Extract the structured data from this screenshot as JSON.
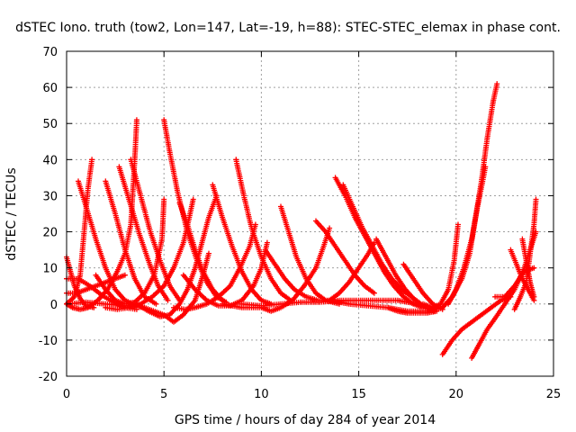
{
  "chart_data": {
    "type": "scatter",
    "title": "dSTEC Iono. truth (tow2, Lon=147, Lat=-19, h=88): STEC-STEC_elemax in phase cont.",
    "xlabel": "GPS time / hours of day 284 of year 2014",
    "ylabel": "dSTEC  / TECUs",
    "xlim": [
      0,
      25
    ],
    "ylim": [
      -20,
      70
    ],
    "xticks": [
      0,
      5,
      10,
      15,
      20,
      25
    ],
    "yticks": [
      -20,
      -10,
      0,
      10,
      20,
      30,
      40,
      50,
      60,
      70
    ],
    "grid": true,
    "marker": "plus",
    "color": "#ff0000",
    "series": [
      {
        "points": [
          [
            0.0,
            13
          ],
          [
            0.2,
            9
          ],
          [
            0.4,
            5
          ],
          [
            0.7,
            1.5
          ],
          [
            1.0,
            -0.5
          ],
          [
            1.4,
            -1
          ]
        ]
      },
      {
        "points": [
          [
            0.0,
            0
          ],
          [
            0.3,
            -1
          ],
          [
            0.7,
            -1.5
          ],
          [
            1.1,
            -1
          ],
          [
            1.6,
            1
          ],
          [
            2.1,
            4
          ],
          [
            2.6,
            9
          ],
          [
            3.0,
            14
          ],
          [
            3.3,
            22
          ],
          [
            3.5,
            40
          ],
          [
            3.6,
            51
          ]
        ]
      },
      {
        "points": [
          [
            0.0,
            7
          ],
          [
            0.6,
            7
          ],
          [
            1.2,
            5
          ],
          [
            1.8,
            2.5
          ],
          [
            2.4,
            0.5
          ],
          [
            3.0,
            -1
          ],
          [
            3.6,
            -1.5
          ]
        ]
      },
      {
        "points": [
          [
            0.0,
            3
          ],
          [
            0.5,
            3
          ],
          [
            1.0,
            4
          ],
          [
            1.5,
            5
          ],
          [
            2.0,
            6
          ],
          [
            2.5,
            7
          ],
          [
            3.0,
            8
          ]
        ]
      },
      {
        "points": [
          [
            0.6,
            34
          ],
          [
            1.0,
            27
          ],
          [
            1.5,
            18
          ],
          [
            2.0,
            10
          ],
          [
            2.5,
            4
          ],
          [
            3.0,
            1
          ],
          [
            3.4,
            0
          ]
        ]
      },
      {
        "points": [
          [
            0.0,
            0
          ],
          [
            0.4,
            2
          ],
          [
            0.7,
            8
          ],
          [
            0.9,
            20
          ],
          [
            1.1,
            32
          ],
          [
            1.3,
            40
          ]
        ]
      },
      {
        "points": [
          [
            2.0,
            34
          ],
          [
            2.5,
            25
          ],
          [
            3.0,
            15
          ],
          [
            3.5,
            7
          ],
          [
            4.0,
            2
          ],
          [
            4.6,
            0
          ]
        ]
      },
      {
        "points": [
          [
            2.7,
            38
          ],
          [
            3.2,
            29
          ],
          [
            3.7,
            20
          ],
          [
            4.2,
            12
          ],
          [
            4.7,
            5
          ],
          [
            5.2,
            1
          ]
        ]
      },
      {
        "points": [
          [
            3.3,
            40
          ],
          [
            3.8,
            30
          ],
          [
            4.3,
            20
          ],
          [
            4.8,
            12
          ],
          [
            5.3,
            5
          ],
          [
            5.8,
            1
          ]
        ]
      },
      {
        "points": [
          [
            1.5,
            8
          ],
          [
            2.0,
            4
          ],
          [
            2.5,
            1
          ],
          [
            3.0,
            0
          ],
          [
            3.5,
            0.5
          ],
          [
            4.0,
            3
          ],
          [
            4.5,
            8
          ],
          [
            4.9,
            18
          ],
          [
            5.0,
            29
          ]
        ]
      },
      {
        "points": [
          [
            5.0,
            51
          ],
          [
            5.3,
            42
          ],
          [
            5.7,
            31
          ],
          [
            6.2,
            20
          ],
          [
            6.7,
            12
          ],
          [
            7.2,
            6
          ],
          [
            7.7,
            2
          ],
          [
            8.2,
            0.5
          ]
        ]
      },
      {
        "points": [
          [
            5.8,
            28
          ],
          [
            6.2,
            22
          ],
          [
            6.6,
            15
          ],
          [
            7.0,
            9
          ],
          [
            7.5,
            4
          ],
          [
            8.0,
            1
          ]
        ]
      },
      {
        "points": [
          [
            2.0,
            -1
          ],
          [
            2.6,
            -1.5
          ],
          [
            3.2,
            -1
          ],
          [
            3.8,
            0
          ],
          [
            4.4,
            2
          ],
          [
            5.0,
            5
          ],
          [
            5.5,
            10
          ],
          [
            6.0,
            17
          ],
          [
            6.3,
            24
          ],
          [
            6.5,
            29
          ]
        ]
      },
      {
        "points": [
          [
            0.0,
            0
          ],
          [
            1.0,
            0.5
          ],
          [
            2.0,
            0
          ],
          [
            3.0,
            -0.5
          ],
          [
            4.0,
            -1
          ],
          [
            5.0,
            -3
          ],
          [
            5.5,
            -5
          ],
          [
            6.0,
            -3
          ],
          [
            6.6,
            1
          ],
          [
            7.0,
            8
          ],
          [
            7.3,
            14
          ]
        ]
      },
      {
        "points": [
          [
            3.6,
            0
          ],
          [
            4.2,
            -2
          ],
          [
            4.8,
            -3.5
          ],
          [
            5.3,
            -3
          ],
          [
            5.8,
            0
          ],
          [
            6.2,
            4
          ],
          [
            6.6,
            10
          ],
          [
            7.0,
            18
          ],
          [
            7.3,
            24
          ],
          [
            7.7,
            30
          ]
        ]
      },
      {
        "points": [
          [
            5.5,
            -1
          ],
          [
            6.1,
            -1.5
          ],
          [
            6.6,
            -1
          ],
          [
            7.2,
            0
          ],
          [
            7.8,
            2
          ],
          [
            8.4,
            5
          ],
          [
            8.9,
            10
          ],
          [
            9.4,
            16
          ],
          [
            9.7,
            22
          ]
        ]
      },
      {
        "points": [
          [
            7.5,
            33
          ],
          [
            8.0,
            24
          ],
          [
            8.5,
            16
          ],
          [
            9.0,
            9
          ],
          [
            9.5,
            4
          ],
          [
            10.0,
            1
          ],
          [
            10.5,
            0
          ]
        ]
      },
      {
        "points": [
          [
            8.7,
            40
          ],
          [
            9.1,
            30
          ],
          [
            9.5,
            21
          ],
          [
            10.0,
            13
          ],
          [
            10.5,
            7
          ],
          [
            11.0,
            3
          ],
          [
            11.5,
            1
          ]
        ]
      },
      {
        "points": [
          [
            6.0,
            8
          ],
          [
            6.6,
            4
          ],
          [
            7.2,
            1
          ],
          [
            7.8,
            -0.5
          ],
          [
            8.4,
            -0.5
          ],
          [
            9.0,
            1
          ],
          [
            9.6,
            5
          ],
          [
            10.0,
            10
          ],
          [
            10.3,
            17
          ]
        ]
      },
      {
        "points": [
          [
            8.0,
            0
          ],
          [
            9.0,
            -1
          ],
          [
            10.0,
            -1
          ],
          [
            10.5,
            -2
          ],
          [
            11.0,
            -1
          ],
          [
            11.6,
            1
          ],
          [
            12.2,
            5
          ],
          [
            12.8,
            10
          ],
          [
            13.2,
            16
          ],
          [
            13.5,
            21
          ]
        ]
      },
      {
        "points": [
          [
            10.2,
            15
          ],
          [
            10.7,
            11
          ],
          [
            11.2,
            7
          ],
          [
            11.7,
            4
          ],
          [
            12.3,
            2
          ],
          [
            12.9,
            1
          ],
          [
            13.5,
            1
          ]
        ]
      },
      {
        "points": [
          [
            11.0,
            27
          ],
          [
            11.4,
            20
          ],
          [
            11.8,
            13
          ],
          [
            12.3,
            7
          ],
          [
            12.8,
            3
          ],
          [
            13.3,
            1
          ],
          [
            14.0,
            0
          ]
        ]
      },
      {
        "points": [
          [
            12.8,
            23
          ],
          [
            13.3,
            20
          ],
          [
            13.8,
            16
          ],
          [
            14.3,
            12
          ],
          [
            14.8,
            8
          ],
          [
            15.3,
            5
          ],
          [
            15.8,
            3
          ]
        ]
      },
      {
        "points": [
          [
            9.0,
            0
          ],
          [
            10.0,
            -0.5
          ],
          [
            11.0,
            0
          ],
          [
            12.0,
            0.5
          ],
          [
            13.0,
            0.5
          ],
          [
            14.0,
            1
          ],
          [
            15.0,
            1
          ],
          [
            16.0,
            1
          ],
          [
            17.0,
            1
          ],
          [
            18.0,
            0
          ]
        ]
      },
      {
        "points": [
          [
            13.5,
            1
          ],
          [
            14.0,
            3
          ],
          [
            14.5,
            6
          ],
          [
            15.0,
            10
          ],
          [
            15.5,
            14
          ],
          [
            15.8,
            17
          ]
        ]
      },
      {
        "points": [
          [
            13.8,
            35
          ],
          [
            14.3,
            30
          ],
          [
            14.8,
            24
          ],
          [
            15.3,
            19
          ],
          [
            15.8,
            14
          ],
          [
            16.3,
            9
          ],
          [
            16.8,
            5
          ],
          [
            17.3,
            2
          ],
          [
            17.8,
            0
          ],
          [
            18.3,
            -1
          ]
        ]
      },
      {
        "points": [
          [
            14.2,
            33
          ],
          [
            14.7,
            27
          ],
          [
            15.2,
            21
          ],
          [
            15.7,
            16
          ],
          [
            16.2,
            11
          ],
          [
            16.7,
            7
          ],
          [
            17.2,
            4
          ],
          [
            17.7,
            2
          ],
          [
            18.2,
            0
          ]
        ]
      },
      {
        "points": [
          [
            15.9,
            18
          ],
          [
            16.4,
            13
          ],
          [
            16.9,
            8
          ],
          [
            17.4,
            4
          ],
          [
            17.9,
            1
          ],
          [
            18.4,
            -1
          ],
          [
            18.9,
            -2
          ]
        ]
      },
      {
        "points": [
          [
            17.3,
            11
          ],
          [
            17.8,
            7
          ],
          [
            18.3,
            3
          ],
          [
            18.8,
            0
          ],
          [
            19.3,
            -1.5
          ]
        ]
      },
      {
        "points": [
          [
            13.5,
            1
          ],
          [
            14.5,
            0
          ],
          [
            15.5,
            -0.5
          ],
          [
            16.5,
            -1
          ],
          [
            17.0,
            -2
          ],
          [
            17.5,
            -2.5
          ],
          [
            18.5,
            -2.5
          ],
          [
            19.0,
            -2
          ]
        ]
      },
      {
        "points": [
          [
            18.3,
            0
          ],
          [
            18.8,
            -1
          ],
          [
            19.2,
            0
          ],
          [
            19.6,
            4
          ],
          [
            19.9,
            12
          ],
          [
            20.1,
            22
          ]
        ]
      },
      {
        "points": [
          [
            16.5,
            -1
          ],
          [
            17.5,
            -2
          ],
          [
            18.5,
            -2
          ],
          [
            19.3,
            -1
          ],
          [
            19.8,
            2
          ],
          [
            20.3,
            7
          ],
          [
            20.7,
            14
          ],
          [
            21.0,
            24
          ],
          [
            21.3,
            34
          ],
          [
            21.6,
            46
          ],
          [
            21.9,
            56
          ],
          [
            22.1,
            61
          ]
        ]
      },
      {
        "points": [
          [
            19.6,
            0
          ],
          [
            20.0,
            4
          ],
          [
            20.4,
            10
          ],
          [
            20.8,
            18
          ],
          [
            21.1,
            27
          ],
          [
            21.4,
            35
          ],
          [
            21.5,
            38
          ]
        ]
      },
      {
        "points": [
          [
            19.3,
            -14
          ],
          [
            19.8,
            -10
          ],
          [
            20.3,
            -7
          ],
          [
            20.8,
            -5
          ],
          [
            21.3,
            -3
          ],
          [
            21.8,
            -1
          ],
          [
            22.3,
            1
          ],
          [
            22.8,
            2
          ]
        ]
      },
      {
        "points": [
          [
            20.8,
            -15
          ],
          [
            21.2,
            -11
          ],
          [
            21.6,
            -7
          ],
          [
            22.0,
            -4
          ],
          [
            22.5,
            0
          ],
          [
            23.0,
            4
          ],
          [
            23.5,
            10
          ],
          [
            23.8,
            15
          ],
          [
            24.1,
            20
          ]
        ]
      },
      {
        "points": [
          [
            22.0,
            2
          ],
          [
            22.5,
            2
          ],
          [
            23.0,
            5
          ],
          [
            23.5,
            9
          ],
          [
            24.0,
            10
          ]
        ]
      },
      {
        "points": [
          [
            22.8,
            15
          ],
          [
            23.1,
            11
          ],
          [
            23.4,
            7
          ],
          [
            23.7,
            4
          ],
          [
            24.0,
            1
          ]
        ]
      },
      {
        "points": [
          [
            23.0,
            -1.5
          ],
          [
            23.3,
            2
          ],
          [
            23.6,
            6
          ],
          [
            23.8,
            14
          ],
          [
            24.0,
            22
          ],
          [
            24.1,
            29
          ]
        ]
      },
      {
        "points": [
          [
            23.4,
            18
          ],
          [
            23.6,
            12
          ],
          [
            23.8,
            6
          ],
          [
            24.0,
            2
          ]
        ]
      }
    ]
  }
}
